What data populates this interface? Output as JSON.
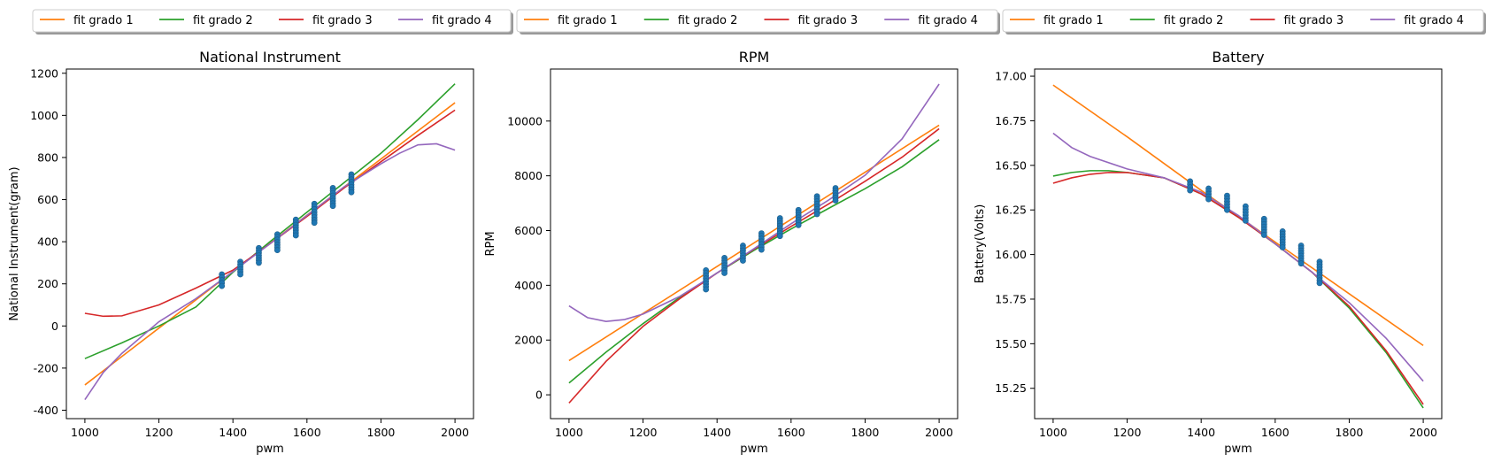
{
  "colors": {
    "scatter": "#1f77b4",
    "fit grado 1": "#ff7f0e",
    "fit grado 2": "#2ca02c",
    "fit grado 3": "#d62728",
    "fit grado 4": "#9467bd"
  },
  "chart_data": [
    {
      "type": "line",
      "title": "National Instrument",
      "xlabel": "pwm",
      "ylabel": "National Instrument(gram)",
      "xlim": [
        950,
        2050
      ],
      "ylim": [
        -440,
        1220
      ],
      "xticks": [
        1000,
        1200,
        1400,
        1600,
        1800,
        2000
      ],
      "yticks": [
        -400,
        -200,
        0,
        200,
        400,
        600,
        800,
        1000,
        1200
      ],
      "legend": {
        "placement": "above",
        "entries": [
          "fit grado 1",
          "fit grado 2",
          "fit grado 3",
          "fit grado 4"
        ]
      },
      "series": [
        {
          "name": "fit grado 1",
          "x": [
            1000,
            1200,
            1400,
            1600,
            1800,
            2000
          ],
          "y": [
            -280,
            -10,
            258,
            526,
            793,
            1060
          ]
        },
        {
          "name": "fit grado 2",
          "x": [
            1000,
            1100,
            1200,
            1300,
            1400,
            1500,
            1600,
            1700,
            1800,
            1900,
            2000
          ],
          "y": [
            -155,
            -80,
            0,
            90,
            255,
            400,
            540,
            680,
            820,
            980,
            1150
          ]
        },
        {
          "name": "fit grado 3",
          "x": [
            1000,
            1050,
            1100,
            1200,
            1300,
            1400,
            1500,
            1600,
            1700,
            1800,
            1900,
            2000
          ],
          "y": [
            60,
            46,
            48,
            100,
            180,
            265,
            390,
            520,
            655,
            780,
            905,
            1025
          ]
        },
        {
          "name": "fit grado 4",
          "x": [
            1000,
            1050,
            1100,
            1200,
            1300,
            1400,
            1500,
            1600,
            1700,
            1800,
            1850,
            1900,
            1950,
            2000
          ],
          "y": [
            -350,
            -220,
            -130,
            20,
            130,
            258,
            390,
            525,
            660,
            770,
            820,
            860,
            865,
            835
          ]
        }
      ],
      "scatter": {
        "x": [
          1370,
          1420,
          1470,
          1520,
          1570,
          1620,
          1670,
          1720
        ],
        "ymin": [
          190,
          245,
          300,
          360,
          430,
          490,
          570,
          635
        ],
        "ymax": [
          245,
          305,
          370,
          435,
          505,
          580,
          655,
          720
        ]
      }
    },
    {
      "type": "line",
      "title": "RPM",
      "xlabel": "pwm",
      "ylabel": "RPM",
      "xlim": [
        950,
        2050
      ],
      "ylim": [
        -870,
        11900
      ],
      "xticks": [
        1000,
        1200,
        1400,
        1600,
        1800,
        2000
      ],
      "yticks": [
        0,
        2000,
        4000,
        6000,
        8000,
        10000
      ],
      "legend": {
        "placement": "above",
        "entries": [
          "fit grado 1",
          "fit grado 2",
          "fit grado 3",
          "fit grado 4"
        ]
      },
      "series": [
        {
          "name": "fit grado 1",
          "x": [
            1000,
            1200,
            1400,
            1600,
            1800,
            2000
          ],
          "y": [
            1250,
            2970,
            4690,
            6410,
            8130,
            9850
          ]
        },
        {
          "name": "fit grado 2",
          "x": [
            1000,
            1100,
            1200,
            1300,
            1400,
            1500,
            1600,
            1700,
            1800,
            1900,
            2000
          ],
          "y": [
            430,
            1560,
            2600,
            3570,
            4450,
            5280,
            6060,
            6800,
            7530,
            8330,
            9320
          ]
        },
        {
          "name": "fit grado 3",
          "x": [
            1000,
            1100,
            1200,
            1300,
            1400,
            1500,
            1600,
            1700,
            1800,
            1900,
            2000
          ],
          "y": [
            -300,
            1220,
            2500,
            3520,
            4450,
            5320,
            6150,
            6960,
            7800,
            8680,
            9720
          ]
        },
        {
          "name": "fit grado 4",
          "x": [
            1000,
            1050,
            1100,
            1150,
            1200,
            1300,
            1400,
            1500,
            1600,
            1700,
            1800,
            1900,
            2000
          ],
          "y": [
            3250,
            2820,
            2680,
            2750,
            2950,
            3600,
            4450,
            5340,
            6250,
            7100,
            8020,
            9350,
            11350
          ]
        }
      ],
      "scatter": {
        "x": [
          1370,
          1420,
          1470,
          1520,
          1570,
          1620,
          1670,
          1720
        ],
        "ymin": [
          3850,
          4450,
          4900,
          5300,
          5800,
          6200,
          6600,
          7100
        ],
        "ymax": [
          4550,
          5000,
          5450,
          5900,
          6450,
          6750,
          7250,
          7550
        ]
      }
    },
    {
      "type": "line",
      "title": "Battery",
      "xlabel": "pwm",
      "ylabel": "Battery(Volts)",
      "xlim": [
        950,
        2050
      ],
      "ylim": [
        15.08,
        17.04
      ],
      "xticks": [
        1000,
        1200,
        1400,
        1600,
        1800,
        2000
      ],
      "yticks": [
        15.25,
        15.5,
        15.75,
        16.0,
        16.25,
        16.5,
        16.75,
        17.0
      ],
      "legend": {
        "placement": "above",
        "entries": [
          "fit grado 1",
          "fit grado 2",
          "fit grado 3",
          "fit grado 4"
        ]
      },
      "series": [
        {
          "name": "fit grado 1",
          "x": [
            1000,
            1200,
            1400,
            1600,
            1800,
            2000
          ],
          "y": [
            16.95,
            16.66,
            16.36,
            16.07,
            15.78,
            15.49
          ]
        },
        {
          "name": "fit grado 2",
          "x": [
            1000,
            1050,
            1100,
            1150,
            1200,
            1300,
            1400,
            1500,
            1600,
            1700,
            1800,
            1900,
            2000
          ],
          "y": [
            16.44,
            16.46,
            16.47,
            16.47,
            16.46,
            16.43,
            16.34,
            16.21,
            16.06,
            15.9,
            15.7,
            15.45,
            15.14
          ]
        },
        {
          "name": "fit grado 3",
          "x": [
            1000,
            1050,
            1100,
            1150,
            1200,
            1300,
            1400,
            1500,
            1600,
            1700,
            1800,
            1900,
            2000
          ],
          "y": [
            16.4,
            16.43,
            16.45,
            16.46,
            16.46,
            16.43,
            16.34,
            16.21,
            16.06,
            15.9,
            15.71,
            15.46,
            15.16
          ]
        },
        {
          "name": "fit grado 4",
          "x": [
            1000,
            1050,
            1100,
            1200,
            1300,
            1400,
            1500,
            1600,
            1700,
            1800,
            1900,
            2000
          ],
          "y": [
            16.68,
            16.6,
            16.55,
            16.48,
            16.43,
            16.35,
            16.22,
            16.06,
            15.9,
            15.73,
            15.53,
            15.29
          ]
        }
      ],
      "scatter": {
        "x": [
          1370,
          1420,
          1470,
          1520,
          1570,
          1620,
          1670,
          1720
        ],
        "ymin": [
          16.36,
          16.31,
          16.25,
          16.19,
          16.11,
          16.04,
          15.95,
          15.84
        ],
        "ymax": [
          16.41,
          16.37,
          16.33,
          16.27,
          16.2,
          16.13,
          16.05,
          15.96
        ]
      }
    }
  ]
}
